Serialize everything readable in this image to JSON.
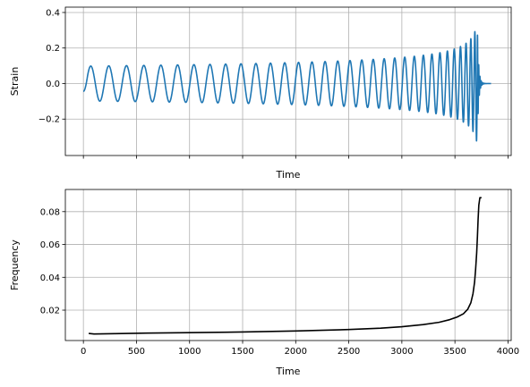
{
  "chart_data": [
    {
      "type": "line",
      "xlabel": "Time",
      "ylabel": "Strain",
      "xlim": [
        -170,
        4030
      ],
      "ylim": [
        -0.405,
        0.43
      ],
      "x_ticks": [
        0,
        500,
        1000,
        1500,
        2000,
        2500,
        3000,
        3500,
        4000
      ],
      "x_tick_labels_visible": false,
      "y_ticks": [
        -0.2,
        0.0,
        0.2,
        0.4
      ],
      "y_tick_labels": [
        "−0.2",
        "0.0",
        "0.2",
        "0.4"
      ],
      "grid": true,
      "line_color": "#1f77b4",
      "waveform": {
        "t_start": 0,
        "t_merger": 3710,
        "t_end": 3840,
        "amplitude_start": 0.098,
        "amplitude_peak": 0.38,
        "initial_frequency": 0.0058,
        "peak_frequency": 0.088
      }
    },
    {
      "type": "line",
      "xlabel": "Time",
      "ylabel": "Frequency",
      "xlim": [
        -170,
        4030
      ],
      "ylim": [
        0.0015,
        0.0935
      ],
      "x_ticks": [
        0,
        500,
        1000,
        1500,
        2000,
        2500,
        3000,
        3500,
        4000
      ],
      "x_tick_labels": [
        "0",
        "500",
        "1000",
        "1500",
        "2000",
        "2500",
        "3000",
        "3500",
        "4000"
      ],
      "y_ticks": [
        0.02,
        0.04,
        0.06,
        0.08
      ],
      "y_tick_labels": [
        "0.02",
        "0.04",
        "0.06",
        "0.08"
      ],
      "grid": true,
      "line_color": "#000000",
      "x": [
        50,
        100,
        300,
        600,
        1000,
        1500,
        2000,
        2500,
        2800,
        3000,
        3200,
        3350,
        3450,
        3520,
        3580,
        3620,
        3650,
        3670,
        3685,
        3695,
        3705,
        3712,
        3718,
        3725,
        3735,
        3750
      ],
      "y": [
        0.0058,
        0.0055,
        0.0057,
        0.006,
        0.0063,
        0.0067,
        0.0073,
        0.0082,
        0.009,
        0.0099,
        0.0112,
        0.0126,
        0.0142,
        0.0158,
        0.0178,
        0.0205,
        0.0245,
        0.03,
        0.037,
        0.045,
        0.055,
        0.065,
        0.075,
        0.084,
        0.0885,
        0.0885
      ]
    }
  ]
}
